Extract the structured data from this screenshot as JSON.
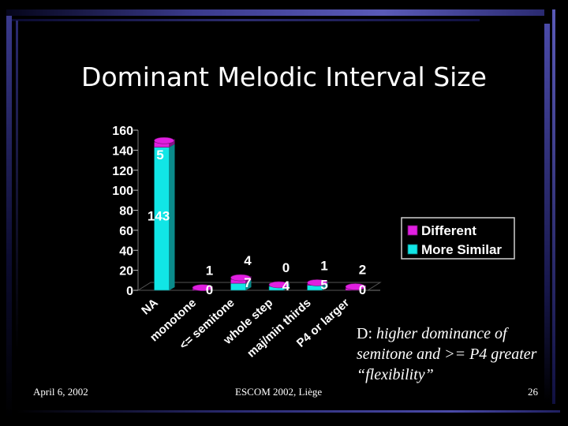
{
  "slide": {
    "title": "Dominant Melodic Interval Size",
    "note_lead": "D:",
    "note_rest": "higher dominance of semitone and >= P4 greater “flexibility”",
    "footer_date": "April 6, 2002",
    "footer_venue": "ESCOM 2002, Liège",
    "page_number": "26"
  },
  "chart_data": {
    "type": "bar",
    "stacked": true,
    "title": "",
    "xlabel": "",
    "ylabel": "",
    "ylim": [
      0,
      160
    ],
    "yticks": [
      "0",
      "20",
      "40",
      "60",
      "80",
      "100",
      "120",
      "140",
      "160"
    ],
    "categories": [
      "NA",
      "monotone",
      "<= semitone",
      "whole step",
      "maj/min thirds",
      "P4 or larger"
    ],
    "series": [
      {
        "name": "More Similar",
        "color": "#11e6e6",
        "values": [
          143,
          0,
          7,
          4,
          5,
          0
        ]
      },
      {
        "name": "Different",
        "color": "#e01fe0",
        "values": [
          5,
          1,
          4,
          0,
          1,
          2
        ]
      }
    ],
    "legend_position": "right"
  }
}
